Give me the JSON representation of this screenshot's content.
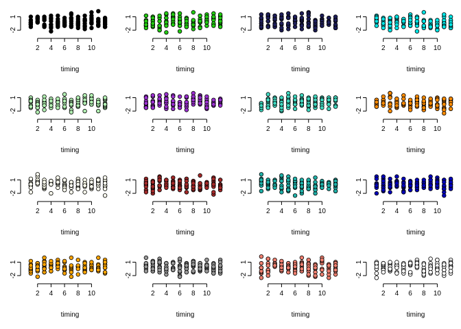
{
  "chart_data": {
    "type": "scatter",
    "layout": {
      "rows": 4,
      "cols": 4
    },
    "x_ticks": [
      2,
      4,
      6,
      8,
      10
    ],
    "x_tick_labels": [
      "2",
      "4",
      "6",
      "8",
      "10"
    ],
    "y_ticks": [
      1,
      -2
    ],
    "y_tick_labels": [
      "1",
      "-2"
    ],
    "xlim": [
      0.5,
      12.5
    ],
    "ylim": [
      -2.6,
      2.3
    ],
    "grid": false,
    "panels": [
      {
        "xlabel": "timing",
        "fill": "#000000",
        "seed": 11
      },
      {
        "xlabel": "timing",
        "fill": "#22cc11",
        "seed": 23
      },
      {
        "xlabel": "timing",
        "fill": "#1e1e5a",
        "seed": 37
      },
      {
        "xlabel": "timing",
        "fill": "#00e5e5",
        "seed": 41
      },
      {
        "xlabel": "timing",
        "fill": "#b3f0b3",
        "seed": 53
      },
      {
        "xlabel": "timing",
        "fill": "#9b30d0",
        "seed": 67
      },
      {
        "xlabel": "timing",
        "fill": "#40d8c0",
        "seed": 71
      },
      {
        "xlabel": "timing",
        "fill": "#ff8c00",
        "seed": 83
      },
      {
        "xlabel": "timing",
        "fill": "#fffff0",
        "seed": 97
      },
      {
        "xlabel": "timing",
        "fill": "#a52a2a",
        "seed": 101
      },
      {
        "xlabel": "timing",
        "fill": "#20b2aa",
        "seed": 113
      },
      {
        "xlabel": "timing",
        "fill": "#0000bb",
        "seed": 127
      },
      {
        "xlabel": "timing",
        "fill": "#ffa500",
        "seed": 131
      },
      {
        "xlabel": "timing",
        "fill": "#999999",
        "seed": 149
      },
      {
        "xlabel": "timing",
        "fill": "#f08070",
        "seed": 157
      },
      {
        "xlabel": "timing",
        "fill": "#ffffff",
        "seed": 163
      }
    ],
    "points_per_timing": 10,
    "timings": [
      1,
      2,
      3,
      4,
      5,
      6,
      7,
      8,
      9,
      10,
      11,
      12
    ]
  }
}
